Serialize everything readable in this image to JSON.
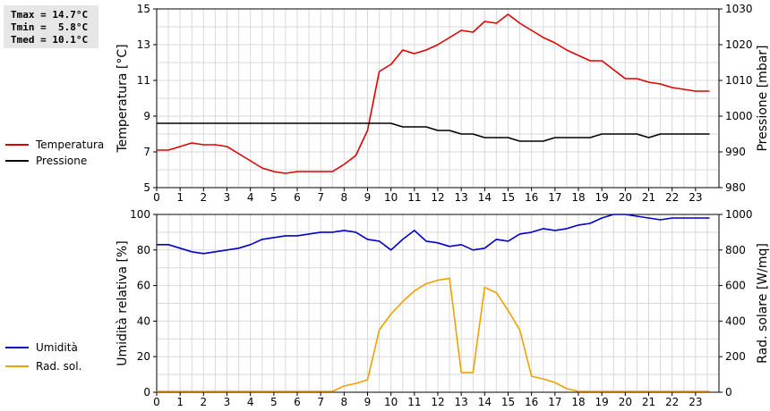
{
  "stats": {
    "tmax": "Tmax = 14.7°C",
    "tmin": "Tmin =  5.8°C",
    "tmed": "Tmed = 10.1°C"
  },
  "legend_top": [
    {
      "label": "Temperatura",
      "color": "#dd0000"
    },
    {
      "label": "Pressione",
      "color": "#000000"
    }
  ],
  "legend_bottom": [
    {
      "label": "Umidità",
      "color": "#0000cc"
    },
    {
      "label": "Rad. sol.",
      "color": "#f0a000"
    }
  ],
  "chart_data": [
    {
      "type": "line",
      "ylabel": "Temperatura [°C]",
      "y2label": "Pressione [mbar]",
      "xlim": [
        0,
        24
      ],
      "ylim": [
        5,
        15
      ],
      "y2lim": [
        980,
        1030
      ],
      "x_ticks": [
        0,
        1,
        2,
        3,
        4,
        5,
        6,
        7,
        8,
        9,
        10,
        11,
        12,
        13,
        14,
        15,
        16,
        17,
        18,
        19,
        20,
        21,
        22,
        23
      ],
      "y_ticks": [
        5,
        7,
        9,
        11,
        13,
        15
      ],
      "y2_ticks": [
        980,
        990,
        1000,
        1010,
        1020,
        1030
      ],
      "grid": true,
      "series": [
        {
          "name": "Temperatura",
          "axis": "left",
          "color": "#dd0000",
          "points": [
            [
              0,
              7.1
            ],
            [
              0.5,
              7.1
            ],
            [
              1,
              7.3
            ],
            [
              1.5,
              7.5
            ],
            [
              2,
              7.4
            ],
            [
              2.5,
              7.4
            ],
            [
              3,
              7.3
            ],
            [
              3.5,
              6.9
            ],
            [
              4,
              6.5
            ],
            [
              4.5,
              6.1
            ],
            [
              5,
              5.9
            ],
            [
              5.5,
              5.8
            ],
            [
              6,
              5.9
            ],
            [
              6.5,
              5.9
            ],
            [
              7,
              5.9
            ],
            [
              7.5,
              5.9
            ],
            [
              8,
              6.3
            ],
            [
              8.5,
              6.8
            ],
            [
              9,
              8.2
            ],
            [
              9.5,
              11.5
            ],
            [
              10,
              11.9
            ],
            [
              10.5,
              12.7
            ],
            [
              11,
              12.5
            ],
            [
              11.5,
              12.7
            ],
            [
              12,
              13.0
            ],
            [
              12.5,
              13.4
            ],
            [
              13,
              13.8
            ],
            [
              13.5,
              13.7
            ],
            [
              14,
              14.3
            ],
            [
              14.5,
              14.2
            ],
            [
              15,
              14.7
            ],
            [
              15.5,
              14.2
            ],
            [
              16,
              13.8
            ],
            [
              16.5,
              13.4
            ],
            [
              17,
              13.1
            ],
            [
              17.5,
              12.7
            ],
            [
              18,
              12.4
            ],
            [
              18.5,
              12.1
            ],
            [
              19,
              12.1
            ],
            [
              19.5,
              11.6
            ],
            [
              20,
              11.1
            ],
            [
              20.5,
              11.1
            ],
            [
              21,
              10.9
            ],
            [
              21.5,
              10.8
            ],
            [
              22,
              10.6
            ],
            [
              22.5,
              10.5
            ],
            [
              23,
              10.4
            ],
            [
              23.6,
              10.4
            ]
          ]
        },
        {
          "name": "Pressione",
          "axis": "right",
          "color": "#000000",
          "points": [
            [
              0,
              998
            ],
            [
              0.5,
              998
            ],
            [
              1,
              998
            ],
            [
              1.5,
              998
            ],
            [
              2,
              998
            ],
            [
              2.5,
              998
            ],
            [
              3,
              998
            ],
            [
              3.5,
              998
            ],
            [
              4,
              998
            ],
            [
              4.5,
              998
            ],
            [
              5,
              998
            ],
            [
              5.5,
              998
            ],
            [
              6,
              998
            ],
            [
              6.5,
              998
            ],
            [
              7,
              998
            ],
            [
              7.5,
              998
            ],
            [
              8,
              998
            ],
            [
              8.5,
              998
            ],
            [
              9,
              998
            ],
            [
              9.5,
              998
            ],
            [
              10,
              998
            ],
            [
              10.5,
              997
            ],
            [
              11,
              997
            ],
            [
              11.5,
              997
            ],
            [
              12,
              996
            ],
            [
              12.5,
              996
            ],
            [
              13,
              995
            ],
            [
              13.5,
              995
            ],
            [
              14,
              994
            ],
            [
              14.5,
              994
            ],
            [
              15,
              994
            ],
            [
              15.5,
              993
            ],
            [
              16,
              993
            ],
            [
              16.5,
              993
            ],
            [
              17,
              994
            ],
            [
              17.5,
              994
            ],
            [
              18,
              994
            ],
            [
              18.5,
              994
            ],
            [
              19,
              995
            ],
            [
              19.5,
              995
            ],
            [
              20,
              995
            ],
            [
              20.5,
              995
            ],
            [
              21,
              994
            ],
            [
              21.5,
              995
            ],
            [
              22,
              995
            ],
            [
              22.5,
              995
            ],
            [
              23,
              995
            ],
            [
              23.6,
              995
            ]
          ]
        }
      ]
    },
    {
      "type": "line",
      "ylabel": "Umidità relativa [%]",
      "y2label": "Rad. solare [W/mq]",
      "xlim": [
        0,
        24
      ],
      "ylim": [
        0,
        100
      ],
      "y2lim": [
        0,
        1000
      ],
      "x_ticks": [
        0,
        1,
        2,
        3,
        4,
        5,
        6,
        7,
        8,
        9,
        10,
        11,
        12,
        13,
        14,
        15,
        16,
        17,
        18,
        19,
        20,
        21,
        22,
        23
      ],
      "y_ticks": [
        0,
        20,
        40,
        60,
        80,
        100
      ],
      "y2_ticks": [
        0,
        200,
        400,
        600,
        800,
        1000
      ],
      "grid": true,
      "series": [
        {
          "name": "Umidità",
          "axis": "left",
          "color": "#0000cc",
          "points": [
            [
              0,
              83
            ],
            [
              0.5,
              83
            ],
            [
              1,
              81
            ],
            [
              1.5,
              79
            ],
            [
              2,
              78
            ],
            [
              2.5,
              79
            ],
            [
              3,
              80
            ],
            [
              3.5,
              81
            ],
            [
              4,
              83
            ],
            [
              4.5,
              86
            ],
            [
              5,
              87
            ],
            [
              5.5,
              88
            ],
            [
              6,
              88
            ],
            [
              6.5,
              89
            ],
            [
              7,
              90
            ],
            [
              7.5,
              90
            ],
            [
              8,
              91
            ],
            [
              8.5,
              90
            ],
            [
              9,
              86
            ],
            [
              9.5,
              85
            ],
            [
              10,
              80
            ],
            [
              10.5,
              86
            ],
            [
              11,
              91
            ],
            [
              11.5,
              85
            ],
            [
              12,
              84
            ],
            [
              12.5,
              82
            ],
            [
              13,
              83
            ],
            [
              13.5,
              80
            ],
            [
              14,
              81
            ],
            [
              14.5,
              86
            ],
            [
              15,
              85
            ],
            [
              15.5,
              89
            ],
            [
              16,
              90
            ],
            [
              16.5,
              92
            ],
            [
              17,
              91
            ],
            [
              17.5,
              92
            ],
            [
              18,
              94
            ],
            [
              18.5,
              95
            ],
            [
              19,
              98
            ],
            [
              19.5,
              100
            ],
            [
              20,
              100
            ],
            [
              20.5,
              99
            ],
            [
              21,
              98
            ],
            [
              21.5,
              97
            ],
            [
              22,
              98
            ],
            [
              22.5,
              98
            ],
            [
              23,
              98
            ],
            [
              23.6,
              98
            ]
          ]
        },
        {
          "name": "Rad. sol.",
          "axis": "right",
          "color": "#f0a000",
          "points": [
            [
              0,
              5
            ],
            [
              0.5,
              5
            ],
            [
              1,
              5
            ],
            [
              1.5,
              5
            ],
            [
              2,
              5
            ],
            [
              2.5,
              5
            ],
            [
              3,
              5
            ],
            [
              3.5,
              5
            ],
            [
              4,
              5
            ],
            [
              4.5,
              5
            ],
            [
              5,
              5
            ],
            [
              5.5,
              5
            ],
            [
              6,
              5
            ],
            [
              6.5,
              5
            ],
            [
              7,
              5
            ],
            [
              7.5,
              5
            ],
            [
              8,
              35
            ],
            [
              8.5,
              50
            ],
            [
              9,
              70
            ],
            [
              9.5,
              350
            ],
            [
              10,
              440
            ],
            [
              10.5,
              510
            ],
            [
              11,
              570
            ],
            [
              11.5,
              610
            ],
            [
              12,
              630
            ],
            [
              12.5,
              640
            ],
            [
              13,
              110
            ],
            [
              13.5,
              110
            ],
            [
              14,
              590
            ],
            [
              14.5,
              560
            ],
            [
              15,
              460
            ],
            [
              15.5,
              350
            ],
            [
              16,
              90
            ],
            [
              16.5,
              75
            ],
            [
              17,
              55
            ],
            [
              17.5,
              20
            ],
            [
              18,
              5
            ],
            [
              18.5,
              5
            ],
            [
              19,
              5
            ],
            [
              19.5,
              5
            ],
            [
              20,
              5
            ],
            [
              20.5,
              5
            ],
            [
              21,
              5
            ],
            [
              21.5,
              5
            ],
            [
              22,
              5
            ],
            [
              22.5,
              5
            ],
            [
              23,
              5
            ],
            [
              23.6,
              5
            ]
          ]
        }
      ]
    }
  ]
}
